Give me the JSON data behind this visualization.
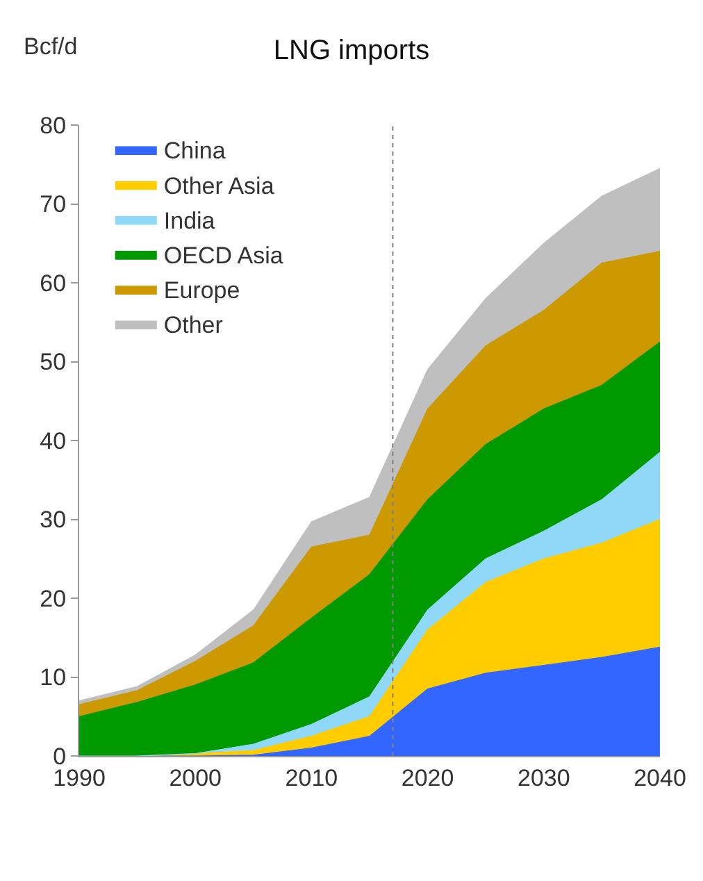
{
  "chart_data": {
    "type": "area",
    "stacked": true,
    "title": "LNG imports",
    "ylabel": "Bcf/d",
    "x": [
      1990,
      1995,
      2000,
      2005,
      2010,
      2015,
      2020,
      2025,
      2030,
      2035,
      2040
    ],
    "series": [
      {
        "name": "China",
        "color": "#3366ff",
        "values": [
          0,
          0,
          0,
          0.1,
          1,
          2.5,
          8.5,
          10.5,
          11.5,
          12.5,
          13.8
        ]
      },
      {
        "name": "Other Asia",
        "color": "#ffcc00",
        "values": [
          0,
          0,
          0.3,
          0.6,
          1.5,
          2.5,
          7.5,
          11.5,
          13.5,
          14.5,
          16.2
        ]
      },
      {
        "name": "India",
        "color": "#8fd8f8",
        "values": [
          0,
          0,
          0,
          0.8,
          1.5,
          2.5,
          2.5,
          3,
          3.5,
          5.5,
          8.5
        ]
      },
      {
        "name": "OECD Asia",
        "color": "#009900",
        "values": [
          5,
          6.8,
          8.7,
          10.3,
          13.5,
          15.5,
          14,
          14.5,
          15.5,
          14.5,
          14
        ]
      },
      {
        "name": "Europe",
        "color": "#cc9900",
        "values": [
          1.5,
          1.5,
          3,
          4.7,
          9,
          5,
          11.5,
          12.5,
          12.5,
          15.5,
          11.5
        ]
      },
      {
        "name": "Other",
        "color": "#bfbfbf",
        "values": [
          0.5,
          0.5,
          0.8,
          2,
          3.2,
          4.8,
          5,
          6,
          8.5,
          8.5,
          10.5
        ]
      }
    ],
    "xlim": [
      1990,
      2040
    ],
    "xticks": [
      1990,
      2000,
      2010,
      2020,
      2030,
      2040
    ],
    "ylim": [
      0,
      80
    ],
    "yticks": [
      0,
      10,
      20,
      30,
      40,
      50,
      60,
      70,
      80
    ],
    "ref_lines": [
      {
        "axis": "x",
        "value": 2017,
        "color": "#808080",
        "line_style": "dotted"
      }
    ],
    "legend": "top left"
  }
}
